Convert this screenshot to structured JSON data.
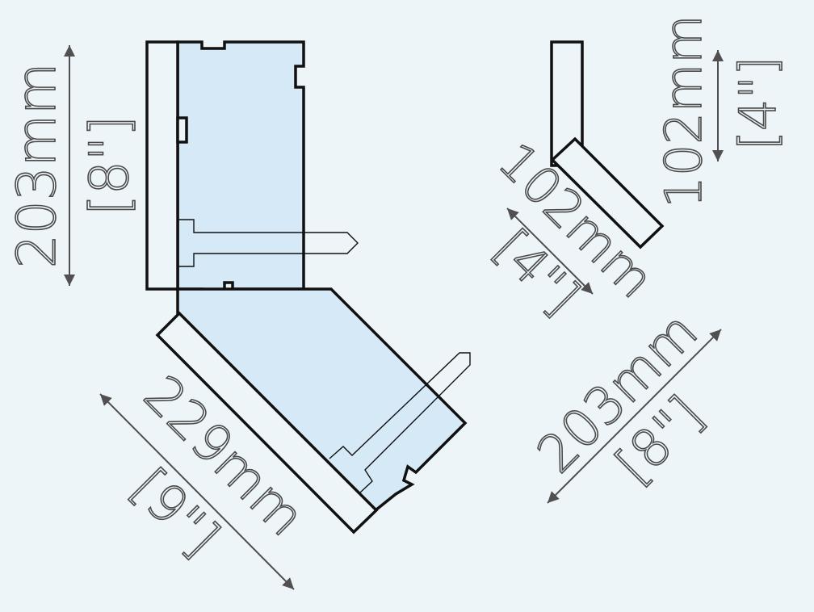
{
  "diagram": {
    "colors": {
      "background": "#eef5f9",
      "panel_fill": "#d6e9f6",
      "outline": "#111111",
      "dimension": "#4f4f4f"
    },
    "dimensions": {
      "left_height": {
        "metric": "203mm",
        "imperial": "[8\"]"
      },
      "bottom_diagonal": {
        "metric": "229mm",
        "imperial": "[9\"]"
      },
      "small_vertical": {
        "metric": "102mm",
        "imperial": "[4\"]"
      },
      "small_diagonal": {
        "metric": "102mm",
        "imperial": "[4\"]"
      },
      "right_diagonal": {
        "metric": "203mm",
        "imperial": "[8\"]"
      }
    }
  }
}
